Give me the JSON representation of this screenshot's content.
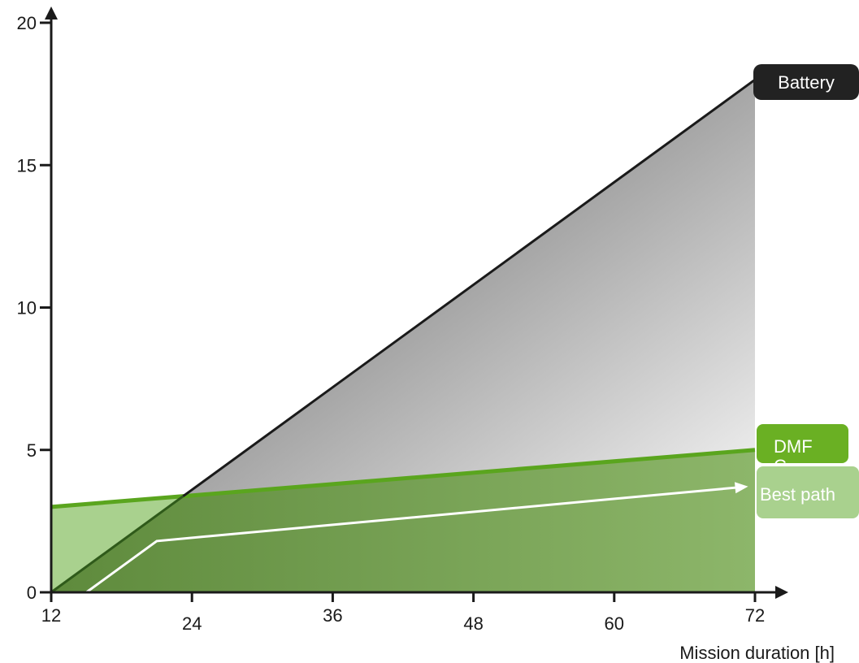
{
  "chart_data": {
    "type": "line",
    "title": "",
    "xlabel": "Mission duration [h]",
    "ylabel": "",
    "x_ticks": [
      12,
      24,
      36,
      48,
      60,
      72
    ],
    "y_ticks": [
      0,
      5,
      10,
      15,
      20
    ],
    "xlim": [
      12,
      72
    ],
    "ylim": [
      0,
      20
    ],
    "grid": false,
    "series": [
      {
        "name": "Battery",
        "x": [
          12,
          72
        ],
        "y": [
          0,
          18
        ],
        "color": "#1a1a1a"
      },
      {
        "name": "DMFC",
        "x": [
          12,
          72
        ],
        "y": [
          3,
          5
        ],
        "color": "#5aa51e"
      },
      {
        "name": "Best path",
        "x": [
          15,
          21,
          71
        ],
        "y": [
          0,
          1.8,
          3.7
        ],
        "color": "#ffffff"
      }
    ],
    "tags": [
      {
        "label": "Battery",
        "color": "#222222"
      },
      {
        "label": "DMF\nC",
        "color": "#6ab023"
      },
      {
        "label": "Best path",
        "color": "#a9d18e"
      }
    ]
  }
}
